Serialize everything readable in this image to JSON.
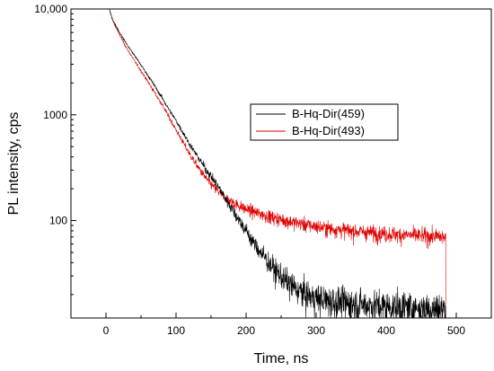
{
  "chart_data": {
    "type": "line",
    "title": "",
    "xlabel": "Time, ns",
    "ylabel": "PL intensity, cps",
    "xscale": "linear",
    "yscale": "log",
    "xlim": [
      -50,
      550
    ],
    "ylim": [
      12,
      10000
    ],
    "xticks": [
      0,
      100,
      200,
      300,
      400,
      500
    ],
    "xtick_labels": [
      "0",
      "100",
      "200",
      "300",
      "400",
      "500"
    ],
    "yticks": [
      100,
      1000,
      10000
    ],
    "ytick_labels": [
      "100",
      "1000",
      "10,000"
    ],
    "grid": false,
    "legend_position": "center-right",
    "noisy_trace": true,
    "series": [
      {
        "name": "B-Hq-Dir(459)",
        "color": "#000000",
        "x": [
          5,
          10,
          20,
          30,
          40,
          50,
          60,
          70,
          80,
          90,
          100,
          110,
          120,
          130,
          140,
          150,
          160,
          170,
          180,
          190,
          200,
          210,
          220,
          230,
          240,
          250,
          260,
          270,
          280,
          290,
          300,
          320,
          350,
          400,
          450,
          485
        ],
        "y": [
          9800,
          7800,
          5900,
          4600,
          3700,
          2950,
          2350,
          1850,
          1450,
          1120,
          880,
          680,
          520,
          410,
          325,
          262,
          210,
          165,
          130,
          102,
          80,
          63,
          51,
          42,
          35,
          30,
          26,
          23,
          21,
          19.5,
          18.5,
          17.5,
          16.5,
          15.5,
          15,
          14.5
        ]
      },
      {
        "name": "B-Hq-Dir(493)",
        "color": "#e00000",
        "x": [
          5,
          10,
          20,
          30,
          40,
          50,
          60,
          70,
          80,
          90,
          100,
          110,
          120,
          130,
          140,
          150,
          160,
          170,
          180,
          190,
          200,
          220,
          240,
          260,
          280,
          300,
          320,
          350,
          400,
          450,
          485
        ],
        "y": [
          9800,
          7600,
          5600,
          4200,
          3300,
          2600,
          2050,
          1600,
          1250,
          950,
          720,
          550,
          420,
          330,
          265,
          220,
          190,
          165,
          150,
          138,
          128,
          116,
          106,
          99,
          93,
          88,
          84,
          80,
          75,
          72,
          70
        ]
      }
    ]
  }
}
